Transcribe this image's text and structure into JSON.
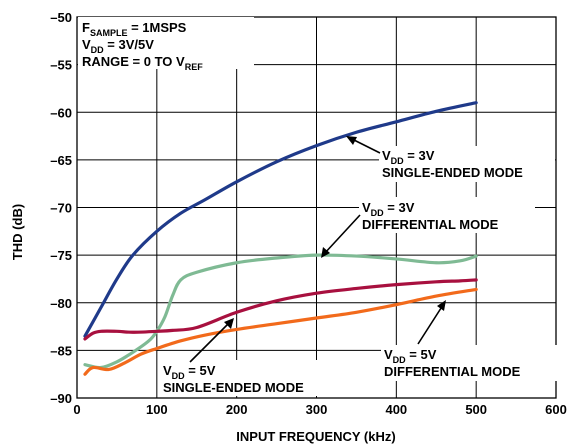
{
  "chart_data": {
    "type": "line",
    "xlabel": "INPUT FREQUENCY (kHz)",
    "ylabel": "THD (dB)",
    "xlim": [
      0,
      600
    ],
    "ylim": [
      -90,
      -50
    ],
    "xticks": [
      "0",
      "100",
      "200",
      "300",
      "400",
      "500",
      "600"
    ],
    "yticks": [
      "–50",
      "–55",
      "–60",
      "–65",
      "–70",
      "–75",
      "–80",
      "–85",
      "–90"
    ],
    "grid": true,
    "info_lines": [
      {
        "main": "F",
        "sub": "SAMPLE",
        "rest": " = 1MSPS"
      },
      {
        "main": "V",
        "sub": "DD",
        "rest": " = 3V/5V"
      },
      {
        "main": "RANGE = 0 TO V",
        "sub": "REF",
        "rest": ""
      }
    ],
    "annotations": [
      {
        "pre": "V",
        "sub": "DD",
        "post": " = 3V",
        "line2": "SINGLE-ENDED MODE"
      },
      {
        "pre": "V",
        "sub": "DD",
        "post": " = 3V",
        "line2": "DIFFERENTIAL MODE"
      },
      {
        "pre": "V",
        "sub": "DD",
        "post": " = 5V",
        "line2": "SINGLE-ENDED MODE"
      },
      {
        "pre": "V",
        "sub": "DD",
        "post": " = 5V",
        "line2": "DIFFERENTIAL MODE"
      }
    ],
    "series": [
      {
        "color": "#1f3a8a",
        "x": [
          10,
          30,
          50,
          70,
          100,
          130,
          160,
          200,
          250,
          300,
          350,
          400,
          450,
          500
        ],
        "y": [
          -83.5,
          -80.5,
          -77.5,
          -75.0,
          -72.5,
          -70.6,
          -69.2,
          -67.3,
          -65.2,
          -63.5,
          -62.1,
          -61.0,
          -59.9,
          -59.0
        ]
      },
      {
        "color": "#7fba94",
        "x": [
          10,
          30,
          50,
          70,
          90,
          100,
          110,
          120,
          130,
          150,
          200,
          250,
          300,
          350,
          400,
          450,
          480,
          500
        ],
        "y": [
          -86.5,
          -86.8,
          -86.2,
          -85.2,
          -84.0,
          -83.0,
          -81.5,
          -79.2,
          -77.6,
          -76.8,
          -75.8,
          -75.3,
          -75.0,
          -75.1,
          -75.4,
          -75.8,
          -75.6,
          -75.1
        ]
      },
      {
        "color": "#a8103f",
        "x": [
          10,
          20,
          30,
          50,
          70,
          100,
          120,
          150,
          200,
          250,
          300,
          350,
          400,
          450,
          480,
          500
        ],
        "y": [
          -83.8,
          -83.2,
          -83.0,
          -83.0,
          -83.1,
          -83.0,
          -82.9,
          -82.6,
          -81.0,
          -79.8,
          -79.0,
          -78.5,
          -78.1,
          -77.8,
          -77.7,
          -77.6
        ]
      },
      {
        "color": "#f26a1b",
        "x": [
          10,
          20,
          40,
          60,
          80,
          100,
          130,
          160,
          200,
          250,
          300,
          350,
          400,
          450,
          500
        ],
        "y": [
          -87.5,
          -86.8,
          -87.0,
          -86.3,
          -85.4,
          -84.8,
          -84.0,
          -83.4,
          -82.8,
          -82.2,
          -81.6,
          -81.0,
          -80.2,
          -79.3,
          -78.6
        ]
      }
    ]
  }
}
